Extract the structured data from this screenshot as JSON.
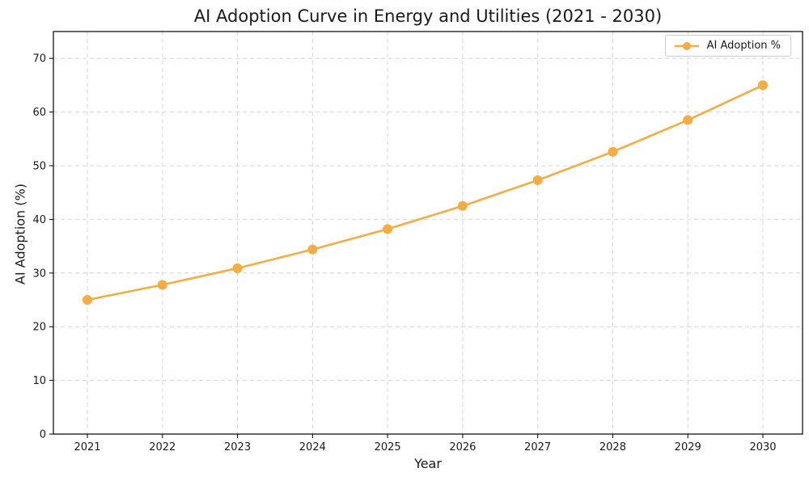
{
  "chart_data": {
    "type": "line",
    "title": "AI Adoption Curve in Energy and Utilities (2021 - 2030)",
    "xlabel": "Year",
    "ylabel": "AI Adoption (%)",
    "categories": [
      "2021",
      "2022",
      "2023",
      "2024",
      "2025",
      "2026",
      "2027",
      "2028",
      "2029",
      "2030"
    ],
    "series": [
      {
        "name": "AI Adoption %",
        "values": [
          25.0,
          27.8,
          30.9,
          34.4,
          38.2,
          42.5,
          47.3,
          52.6,
          58.5,
          65.0
        ],
        "color": "#F4AC45",
        "marker": "circle"
      }
    ],
    "ylim": [
      0,
      75
    ],
    "y_ticks": [
      0,
      10,
      20,
      30,
      40,
      50,
      60,
      70
    ],
    "grid": "dashed-both-axes",
    "legend_position": "upper right"
  },
  "colors": {
    "line_orange": "#F4AC45",
    "grid": "#D6D6D6",
    "spine": "#000000",
    "text": "#1A1A1A",
    "legend_border": "#CCCCCC",
    "background": "#FFFFFF"
  }
}
